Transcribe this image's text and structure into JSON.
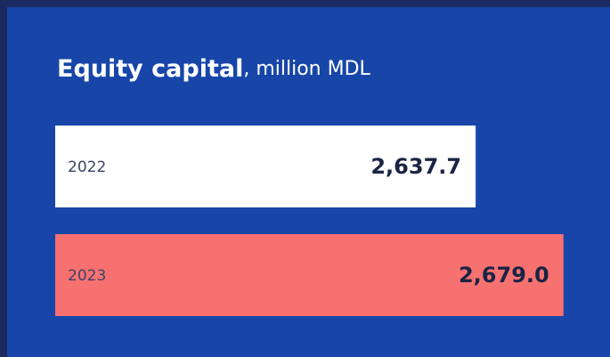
{
  "chart_data": {
    "type": "barh",
    "title": "Equity capital",
    "subtitle": ", million MDL",
    "categories": [
      "2022",
      "2023"
    ],
    "values": [
      2637.7,
      2679.0
    ],
    "value_labels": [
      "2,637.7",
      "2,679.0"
    ],
    "colors": [
      "#ffffff",
      "#f87171"
    ],
    "xlim": [
      2440,
      2690
    ]
  }
}
